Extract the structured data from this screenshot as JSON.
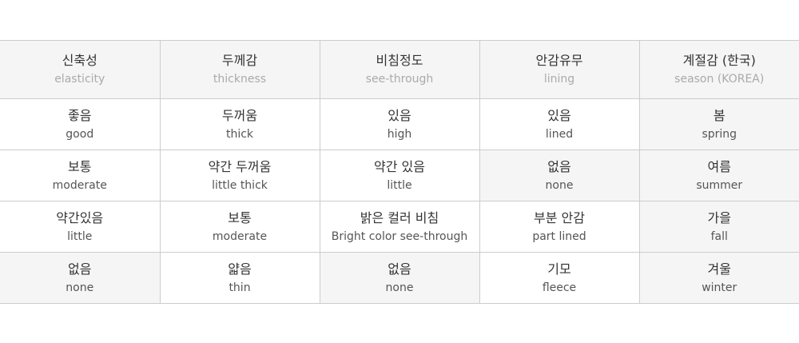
{
  "headers": [
    {
      "ko": "신축성",
      "en": "elasticity"
    },
    {
      "ko": "두께감",
      "en": "thickness"
    },
    {
      "ko": "비침정도",
      "en": "see-through"
    },
    {
      "ko": "안감유무",
      "en": "lining"
    },
    {
      "ko": "계절감 (한국)",
      "en": "season (KOREA)"
    }
  ],
  "rows": [
    [
      {
        "ko": "좋음",
        "en": "good",
        "selected": false
      },
      {
        "ko": "두꺼움",
        "en": "thick",
        "selected": false
      },
      {
        "ko": "있음",
        "en": "high",
        "selected": false
      },
      {
        "ko": "있음",
        "en": "lined",
        "selected": false
      },
      {
        "ko": "봄",
        "en": "spring",
        "selected": true
      }
    ],
    [
      {
        "ko": "보통",
        "en": "moderate",
        "selected": false
      },
      {
        "ko": "약간 두꺼움",
        "en": "little thick",
        "selected": false
      },
      {
        "ko": "약간 있음",
        "en": "little",
        "selected": false
      },
      {
        "ko": "없음",
        "en": "none",
        "selected": true
      },
      {
        "ko": "여름",
        "en": "summer",
        "selected": true
      }
    ],
    [
      {
        "ko": "약간있음",
        "en": "little",
        "selected": false
      },
      {
        "ko": "보통",
        "en": "moderate",
        "selected": false
      },
      {
        "ko": "밝은 컬러 비침",
        "en": "Bright color see-through",
        "selected": false
      },
      {
        "ko": "부분 안감",
        "en": "part lined",
        "selected": false
      },
      {
        "ko": "가을",
        "en": "fall",
        "selected": true
      }
    ],
    [
      {
        "ko": "없음",
        "en": "none",
        "selected": true
      },
      {
        "ko": "얇음",
        "en": "thin",
        "selected": false
      },
      {
        "ko": "없음",
        "en": "none",
        "selected": true
      },
      {
        "ko": "기모",
        "en": "fleece",
        "selected": false
      },
      {
        "ko": "겨울",
        "en": "winter",
        "selected": true
      }
    ]
  ],
  "colors": {
    "selected_bg": "#f5f5f5",
    "border": "#cccccc"
  }
}
